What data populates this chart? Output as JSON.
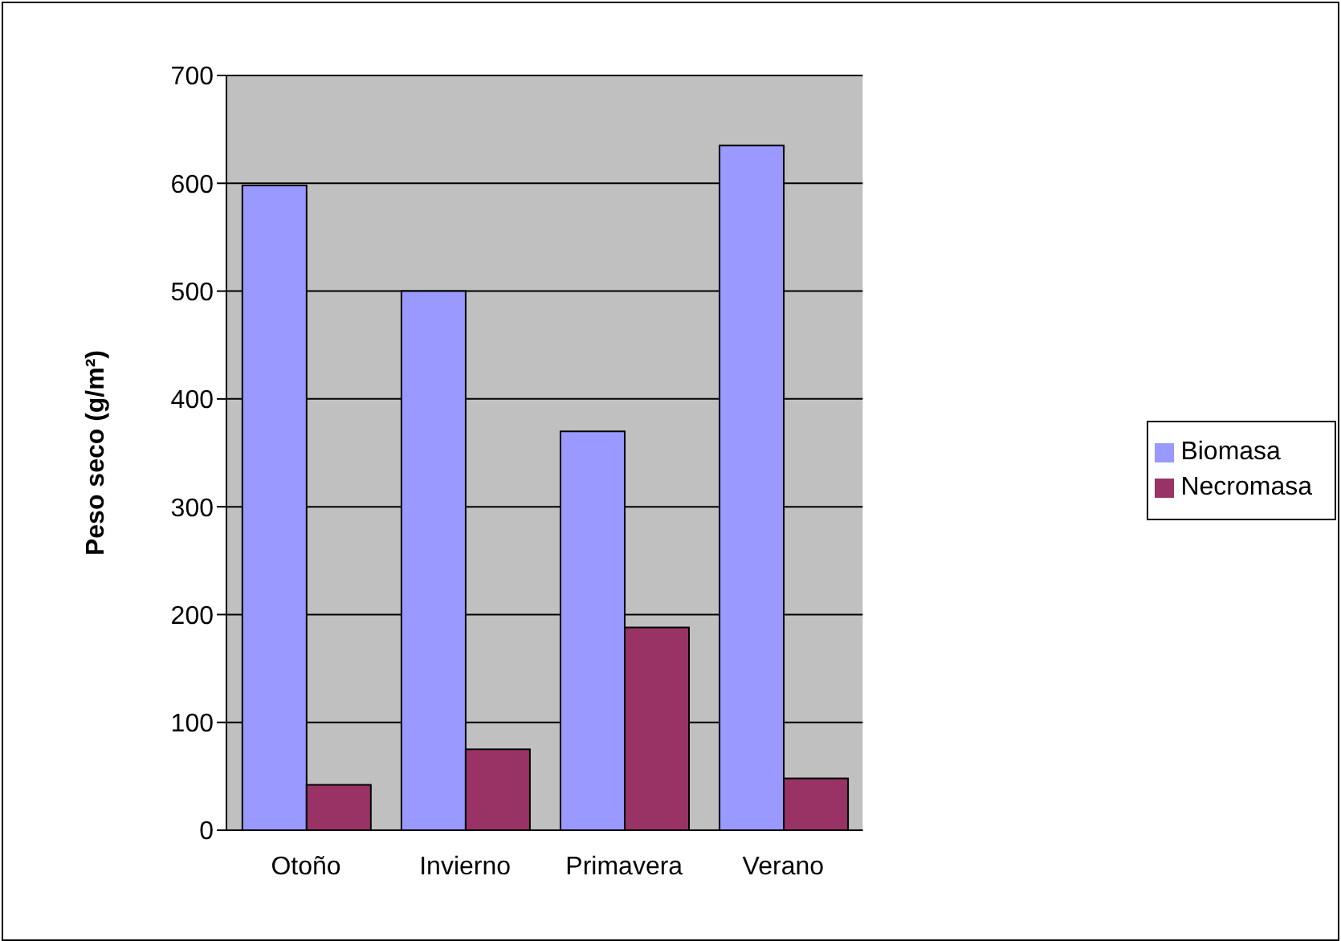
{
  "chart_data": {
    "type": "bar",
    "ylabel": "Peso seco (g/m²)",
    "categories": [
      "Otoño",
      "Invierno",
      "Primavera",
      "Verano"
    ],
    "series": [
      {
        "name": "Biomasa",
        "color": "#9999ff",
        "values": [
          598,
          500,
          370,
          635
        ]
      },
      {
        "name": "Necromasa",
        "color": "#993366",
        "values": [
          42,
          75,
          188,
          48
        ]
      }
    ],
    "ylim": [
      0,
      700
    ],
    "yticks": [
      0,
      100,
      200,
      300,
      400,
      500,
      600,
      700
    ],
    "grid": "y",
    "legend": "right"
  }
}
